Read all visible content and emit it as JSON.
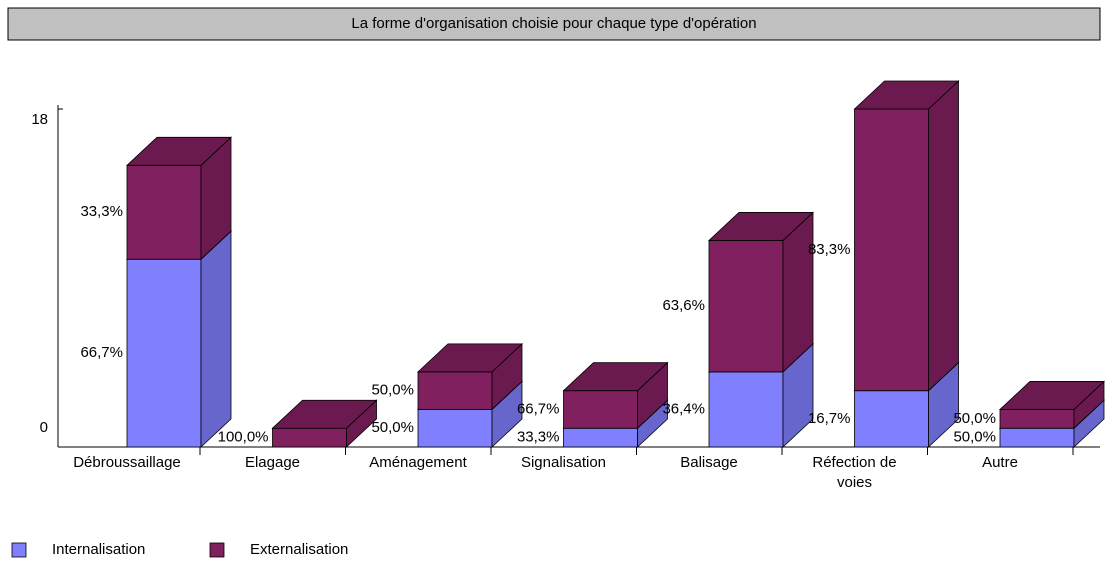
{
  "chart_data": {
    "type": "bar3d_stacked",
    "title": "La forme d'organisation choisie pour chaque type d'opération",
    "categories": [
      "Débroussaillage",
      "Elagage",
      "Aménagement",
      "Signalisation",
      "Balisage",
      "Réfection de voies",
      "Autre"
    ],
    "series": [
      {
        "name": "Internalisation",
        "color": "#8080ff",
        "side": "#6666cc",
        "top": "#7373e6",
        "values": [
          10,
          0,
          2,
          1,
          4,
          3,
          1
        ],
        "value_labels": [
          "66,7%",
          null,
          "50,0%",
          "33,3%",
          "36,4%",
          "16,7%",
          "50,0%"
        ]
      },
      {
        "name": "Externalisation",
        "color": "#80205f",
        "side": "#6b1a4f",
        "top": "#6b1a4f",
        "values": [
          5,
          1,
          2,
          2,
          7,
          15,
          1
        ],
        "value_labels": [
          "33,3%",
          "100,0%",
          "50,0%",
          "66,7%",
          "63,6%",
          "83,3%",
          "50,0%"
        ]
      }
    ],
    "ylim": [
      0,
      18
    ],
    "yticks": [
      0,
      18
    ]
  }
}
